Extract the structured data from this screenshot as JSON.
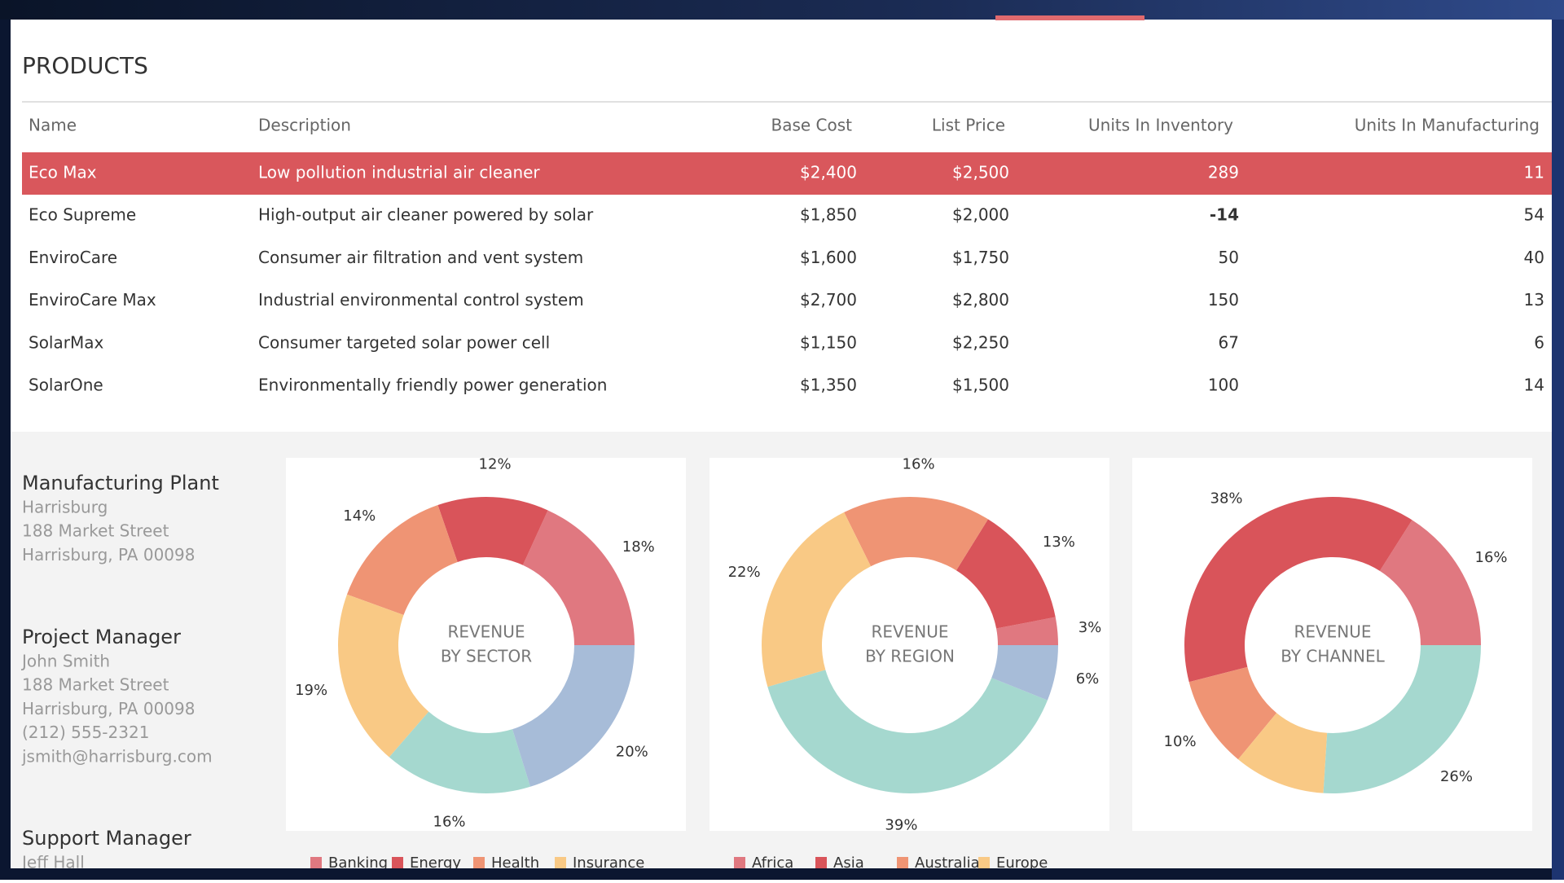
{
  "products": {
    "title": "PRODUCTS",
    "columns": [
      "Name",
      "Description",
      "Base Cost",
      "List Price",
      "Units In Inventory",
      "Units In Manufacturing"
    ],
    "rows": [
      [
        "Eco Max",
        "Low pollution industrial air cleaner",
        "$2,400",
        "$2,500",
        "289",
        "11"
      ],
      [
        "Eco Supreme",
        "High-output air cleaner powered by solar",
        "$1,850",
        "$2,000",
        "-14",
        "54"
      ],
      [
        "EnviroCare",
        "Consumer air filtration and vent system",
        "$1,600",
        "$1,750",
        "50",
        "40"
      ],
      [
        "EnviroCare Max",
        "Industrial environmental control system",
        "$2,700",
        "$2,800",
        "150",
        "13"
      ],
      [
        "SolarMax",
        "Consumer targeted solar power cell",
        "$1,150",
        "$2,250",
        "67",
        "6"
      ],
      [
        "SolarOne",
        "Environmentally friendly power generation",
        "$1,350",
        "$1,500",
        "100",
        "14"
      ]
    ],
    "selected_row": 0
  },
  "contacts": [
    {
      "title": "Manufacturing Plant",
      "lines": [
        "Harrisburg",
        "188 Market Street",
        "Harrisburg, PA 00098"
      ]
    },
    {
      "title": "Project Manager",
      "lines": [
        "John Smith",
        "188 Market Street",
        "Harrisburg, PA 00098",
        "(212) 555-2321",
        "jsmith@harrisburg.com"
      ]
    },
    {
      "title": "Support Manager",
      "lines": [
        "Jeff Hall"
      ]
    }
  ],
  "chart_data": [
    {
      "type": "pie",
      "title_lines": [
        "REVENUE",
        "BY SECTOR"
      ],
      "categories": [
        "Banking",
        "Energy",
        "Health",
        "Insurance",
        null,
        null
      ],
      "values": [
        18,
        12,
        14,
        19,
        16,
        20
      ],
      "value_labels": [
        "18%",
        "12%",
        "14%",
        "19%",
        "16%",
        "20%"
      ],
      "colors": [
        "#e07880",
        "#d9545a",
        "#ef9474",
        "#f9c985",
        "#a5d8cf",
        "#a7bcd8"
      ]
    },
    {
      "type": "pie",
      "title_lines": [
        "REVENUE",
        "BY REGION"
      ],
      "categories": [
        "Africa",
        "Asia",
        "Australia",
        "Europe",
        null,
        null
      ],
      "values": [
        3,
        13,
        16,
        22,
        39,
        6
      ],
      "value_labels": [
        "3%",
        "13%",
        "16%",
        "22%",
        "39%",
        "6%"
      ],
      "colors": [
        "#e07880",
        "#d9545a",
        "#ef9474",
        "#f9c985",
        "#a5d8cf",
        "#a7bcd8"
      ]
    },
    {
      "type": "pie",
      "title_lines": [
        "REVENUE",
        "BY CHANNEL"
      ],
      "categories": [
        null,
        null,
        null,
        null,
        null
      ],
      "values": [
        16,
        38,
        10,
        10,
        26
      ],
      "value_labels": [
        "16%",
        "38%",
        "10%",
        null,
        "26%"
      ],
      "colors": [
        "#e07880",
        "#d9545a",
        "#ef9474",
        "#f9c985",
        "#a5d8cf"
      ]
    }
  ]
}
